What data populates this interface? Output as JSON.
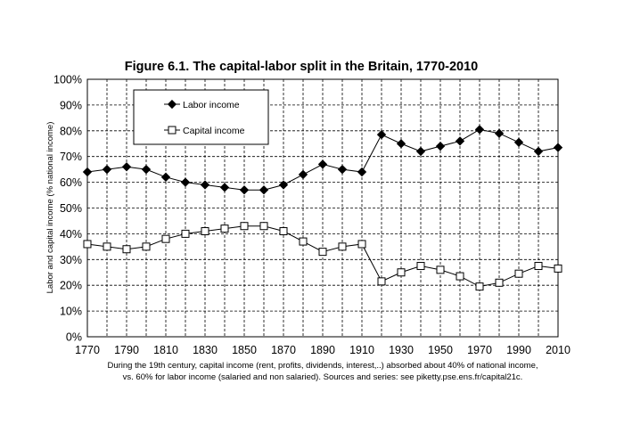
{
  "chart_data": {
    "type": "line",
    "title": "Figure 6.1. The capital-labor split in the Britain, 1770-2010",
    "xlabel": "",
    "ylabel": "Labor and capital income (% national income)",
    "x": [
      1770,
      1780,
      1790,
      1800,
      1810,
      1820,
      1830,
      1840,
      1850,
      1860,
      1870,
      1880,
      1890,
      1900,
      1910,
      1920,
      1930,
      1940,
      1950,
      1960,
      1970,
      1980,
      1990,
      2000,
      2010
    ],
    "xlim": [
      1770,
      2010
    ],
    "ylim": [
      0,
      100
    ],
    "x_ticks": [
      "1770",
      "1790",
      "1810",
      "1830",
      "1850",
      "1870",
      "1890",
      "1910",
      "1930",
      "1950",
      "1970",
      "1990",
      "2010"
    ],
    "y_ticks": [
      "0%",
      "10%",
      "20%",
      "30%",
      "40%",
      "50%",
      "60%",
      "70%",
      "80%",
      "90%",
      "100%"
    ],
    "grid": true,
    "legend_position": "top-left",
    "series": [
      {
        "name": "Labor income",
        "marker": "filled-diamond",
        "color": "#000000",
        "values": [
          64,
          65,
          66,
          65,
          62,
          60,
          59,
          58,
          57,
          57,
          59,
          63,
          67,
          65,
          64,
          78.5,
          75,
          72,
          74,
          76,
          80.5,
          79,
          75.5,
          72,
          73.5
        ]
      },
      {
        "name": "Capital income",
        "marker": "open-square",
        "color": "#000000",
        "values": [
          36,
          35,
          34,
          35,
          38,
          40,
          41,
          42,
          43,
          43,
          41,
          37,
          33,
          35,
          36,
          21.5,
          25,
          27.5,
          26,
          23.5,
          19.5,
          21,
          24.5,
          27.5,
          26.5
        ]
      }
    ]
  },
  "caption": {
    "line1": "During the 19th century, capital income (rent, profits, dividends, interest,..) absorbed about 40% of national income,",
    "line2": "vs. 60% for labor income (salaried and non salaried). Sources and series: see piketty.pse.ens.fr/capital21c."
  }
}
